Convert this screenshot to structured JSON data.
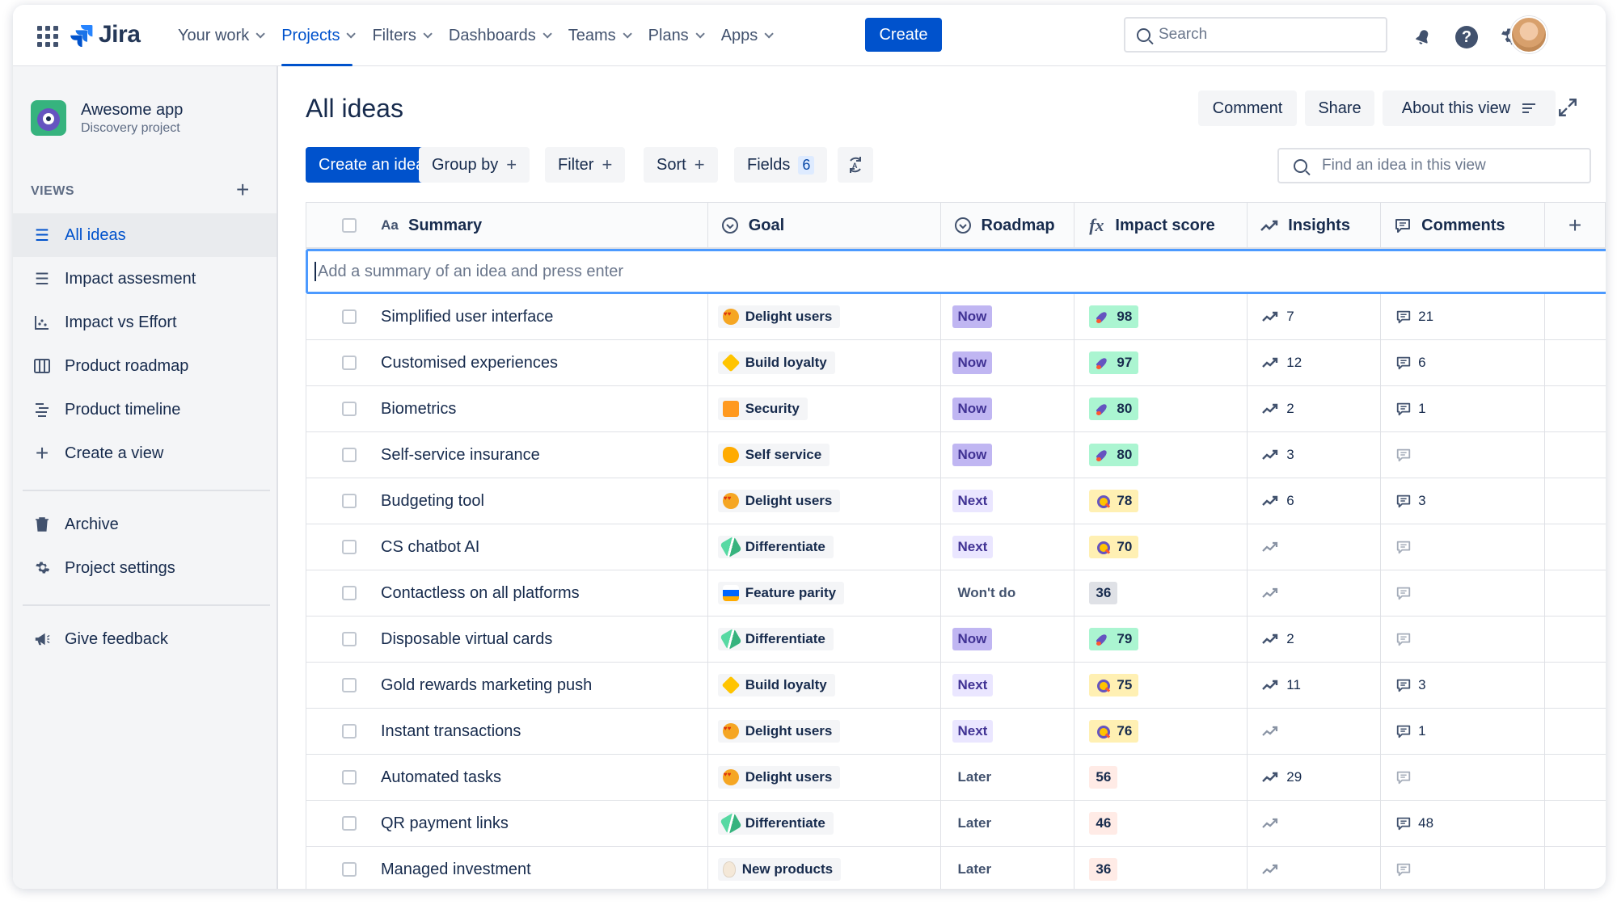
{
  "nav": {
    "logo": "Jira",
    "menu": [
      {
        "label": "Your work"
      },
      {
        "label": "Projects"
      },
      {
        "label": "Filters"
      },
      {
        "label": "Dashboards"
      },
      {
        "label": "Teams"
      },
      {
        "label": "Plans"
      },
      {
        "label": "Apps"
      }
    ],
    "create": "Create",
    "search_placeholder": "Search"
  },
  "sidebar": {
    "project_name": "Awesome app",
    "project_type": "Discovery project",
    "views_heading": "VIEWS",
    "add": "+",
    "items": [
      {
        "label": "All ideas",
        "icon": "list-icon"
      },
      {
        "label": "Impact assesment",
        "icon": "list-icon"
      },
      {
        "label": "Impact vs Effort",
        "icon": "matrix-icon"
      },
      {
        "label": "Product roadmap",
        "icon": "board-icon"
      },
      {
        "label": "Product timeline",
        "icon": "timeline-icon"
      },
      {
        "label": "Create a view",
        "icon": "plus-icon"
      }
    ],
    "archive": "Archive",
    "settings": "Project settings",
    "feedback": "Give feedback"
  },
  "main": {
    "title": "All ideas",
    "comment": "Comment",
    "share": "Share",
    "about": "About this view",
    "create_idea": "Create an idea",
    "group_by": "Group by",
    "filter": "Filter",
    "sort": "Sort",
    "fields": "Fields",
    "fields_count": "6",
    "find_placeholder": "Find an idea in this view",
    "plus": "+"
  },
  "table": {
    "headers": {
      "summary": "Summary",
      "goal": "Goal",
      "roadmap": "Roadmap",
      "impact": "Impact score",
      "insights": "Insights",
      "comments": "Comments"
    },
    "input_placeholder": "Add a summary of an idea and press enter",
    "rows": [
      {
        "summary": "Simplified user interface",
        "goal": "Delight users",
        "goal_icon": "love",
        "roadmap": "Now",
        "road_kind": "now",
        "impact": "98",
        "impact_kind": "high",
        "impact_icon": "rocket",
        "insights": "7",
        "comments": "21"
      },
      {
        "summary": "Customised experiences",
        "goal": "Build loyalty",
        "goal_icon": "star",
        "roadmap": "Now",
        "road_kind": "now",
        "impact": "97",
        "impact_kind": "high",
        "impact_icon": "rocket",
        "insights": "12",
        "comments": "6"
      },
      {
        "summary": "Biometrics",
        "goal": "Security",
        "goal_icon": "lock",
        "roadmap": "Now",
        "road_kind": "now",
        "impact": "80",
        "impact_kind": "high",
        "impact_icon": "rocket",
        "insights": "2",
        "comments": "1"
      },
      {
        "summary": "Self-service insurance",
        "goal": "Self service",
        "goal_icon": "arm",
        "roadmap": "Now",
        "road_kind": "now",
        "impact": "80",
        "impact_kind": "high",
        "impact_icon": "rocket",
        "insights": "3",
        "comments": ""
      },
      {
        "summary": "Budgeting tool",
        "goal": "Delight users",
        "goal_icon": "love",
        "roadmap": "Next",
        "road_kind": "next",
        "impact": "78",
        "impact_kind": "mid",
        "impact_icon": "magnify",
        "insights": "6",
        "comments": "3"
      },
      {
        "summary": "CS chatbot AI",
        "goal": "Differentiate",
        "goal_icon": "dna",
        "roadmap": "Next",
        "road_kind": "next",
        "impact": "70",
        "impact_kind": "mid",
        "impact_icon": "magnify",
        "insights": "",
        "comments": ""
      },
      {
        "summary": "Contactless on all platforms",
        "goal": "Feature parity",
        "goal_icon": "car",
        "roadmap": "Won't do",
        "road_kind": "wont",
        "impact": "36",
        "impact_kind": "plain",
        "impact_icon": "",
        "insights": "",
        "comments": ""
      },
      {
        "summary": "Disposable virtual cards",
        "goal": "Differentiate",
        "goal_icon": "dna",
        "roadmap": "Now",
        "road_kind": "now",
        "impact": "79",
        "impact_kind": "high",
        "impact_icon": "rocket",
        "insights": "2",
        "comments": ""
      },
      {
        "summary": "Gold rewards marketing push",
        "goal": "Build loyalty",
        "goal_icon": "star",
        "roadmap": "Next",
        "road_kind": "next",
        "impact": "75",
        "impact_kind": "mid",
        "impact_icon": "magnify",
        "insights": "11",
        "comments": "3"
      },
      {
        "summary": "Instant transactions",
        "goal": "Delight users",
        "goal_icon": "love",
        "roadmap": "Next",
        "road_kind": "next",
        "impact": "76",
        "impact_kind": "mid",
        "impact_icon": "magnify",
        "insights": "",
        "comments": "1"
      },
      {
        "summary": "Automated tasks",
        "goal": "Delight users",
        "goal_icon": "love",
        "roadmap": "Later",
        "road_kind": "later",
        "impact": "56",
        "impact_kind": "low",
        "impact_icon": "",
        "insights": "29",
        "comments": ""
      },
      {
        "summary": "QR payment links",
        "goal": "Differentiate",
        "goal_icon": "dna",
        "roadmap": "Later",
        "road_kind": "later",
        "impact": "46",
        "impact_kind": "low",
        "impact_icon": "",
        "insights": "",
        "comments": "48"
      },
      {
        "summary": "Managed investment",
        "goal": "New products",
        "goal_icon": "egg",
        "roadmap": "Later",
        "road_kind": "later",
        "impact": "36",
        "impact_kind": "low",
        "impact_icon": "",
        "insights": "",
        "comments": ""
      }
    ]
  }
}
